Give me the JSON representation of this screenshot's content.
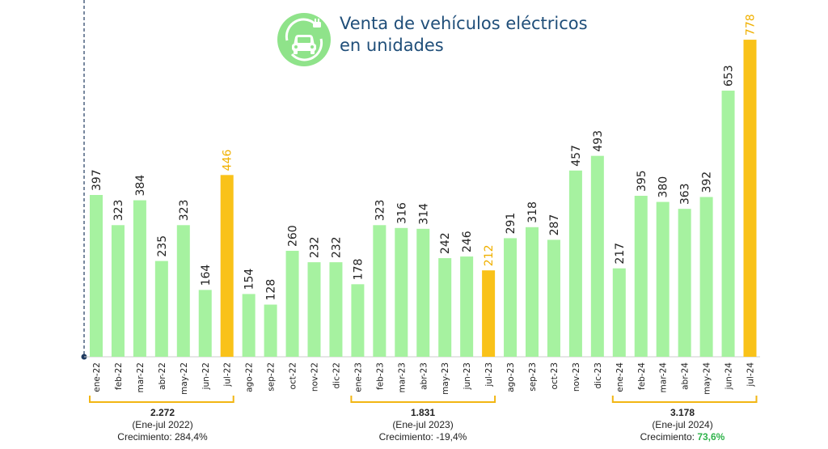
{
  "title_line1": "Venta de vehículos eléctricos",
  "title_line2": "en unidades",
  "icon": "electric-car-icon",
  "colors": {
    "bar": "#a6f2a0",
    "highlight": "#f9c219",
    "highlight_label": "#f0b000",
    "bracket": "#f2b613",
    "axis": "#1f3a5f",
    "growth_positive": "#2eb34a"
  },
  "chart_data": {
    "type": "bar",
    "title": "Venta de vehículos eléctricos en unidades",
    "categories": [
      "ene-22",
      "feb-22",
      "mar-22",
      "abr-22",
      "may-22",
      "jun-22",
      "jul-22",
      "ago-22",
      "sep-22",
      "oct-22",
      "nov-22",
      "dic-22",
      "ene-23",
      "feb-23",
      "mar-23",
      "abr-23",
      "may-23",
      "jun-23",
      "jul-23",
      "ago-23",
      "sep-23",
      "oct-23",
      "nov-23",
      "dic-23",
      "ene-24",
      "feb-24",
      "mar-24",
      "abr-24",
      "may-24",
      "jun-24",
      "jul-24"
    ],
    "values": [
      397,
      323,
      384,
      235,
      323,
      164,
      446,
      154,
      128,
      260,
      232,
      232,
      178,
      323,
      316,
      314,
      242,
      246,
      212,
      291,
      318,
      287,
      457,
      493,
      217,
      395,
      380,
      363,
      392,
      653,
      778
    ],
    "highlighted": [
      "jul-22",
      "jul-23",
      "jul-24"
    ],
    "ylim": [
      0,
      800
    ],
    "grid": false,
    "legend": "none"
  },
  "summaries": [
    {
      "total": "2.272",
      "period": "(Ene-jul 2022)",
      "growth_label": "Crecimiento:",
      "growth_value": "284,4%",
      "growth_color": "#222222"
    },
    {
      "total": "1.831",
      "period": "(Ene-jul 2023)",
      "growth_label": "Crecimiento:",
      "growth_value": "-19,4%",
      "growth_color": "#222222"
    },
    {
      "total": "3.178",
      "period": "(Ene-jul 2024)",
      "growth_label": "Crecimiento:",
      "growth_value": "73,6%",
      "growth_color": "#2eb34a"
    }
  ]
}
